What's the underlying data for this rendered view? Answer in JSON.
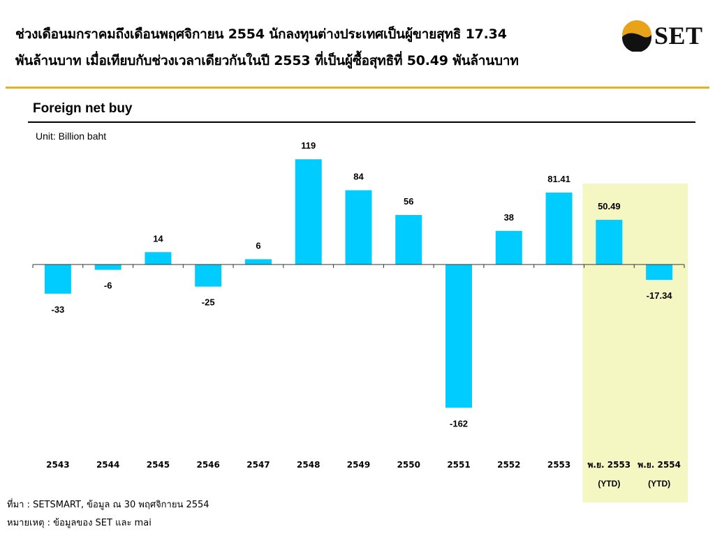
{
  "header": {
    "headline_line1": "ช่วงเดือนมกราคมถึงเดือนพฤศจิกายน 2554 นักลงทุนต่างประเทศเป็นผู้ขายสุทธิ 17.34",
    "headline_line2": "พันล้านบาท เมื่อเทียบกับช่วงเวลาเดียวกันในปี 2553 ที่เป็นผู้ซื้อสุทธิที่ 50.49 พันล้านบาท",
    "logo_text": "SET",
    "accent_color": "#E8B21E"
  },
  "chart_data": {
    "type": "bar",
    "title": "Foreign net buy",
    "unit_label": "Unit: Billion baht",
    "categories": [
      "2543",
      "2544",
      "2545",
      "2546",
      "2547",
      "2548",
      "2549",
      "2550",
      "2551",
      "2552",
      "2553",
      "พ.ย. 2553",
      "พ.ย. 2554"
    ],
    "category_sublabels": [
      "",
      "",
      "",
      "",
      "",
      "",
      "",
      "",
      "",
      "",
      "",
      "(YTD)",
      "(YTD)"
    ],
    "values": [
      -33,
      -6,
      14,
      -25,
      6,
      119,
      84,
      56,
      -162,
      38,
      81.41,
      50.49,
      -17.34
    ],
    "value_labels": [
      "-33",
      "-6",
      "14",
      "-25",
      "6",
      "119",
      "84",
      "56",
      "-162",
      "38",
      "81.41",
      "50.49",
      "-17.34"
    ],
    "highlighted_categories": [
      "พ.ย. 2553",
      "พ.ย. 2554"
    ],
    "bar_color": "#00CCFF",
    "highlight_color": "#F5F7C2",
    "xlabel": "",
    "ylabel": ""
  },
  "footer": {
    "source": "ที่มา : SETSMART, ข้อมูล ณ 30 พฤศจิกายน 2554",
    "note": "หมายเหตุ : ข้อมูลของ SET และ mai"
  }
}
